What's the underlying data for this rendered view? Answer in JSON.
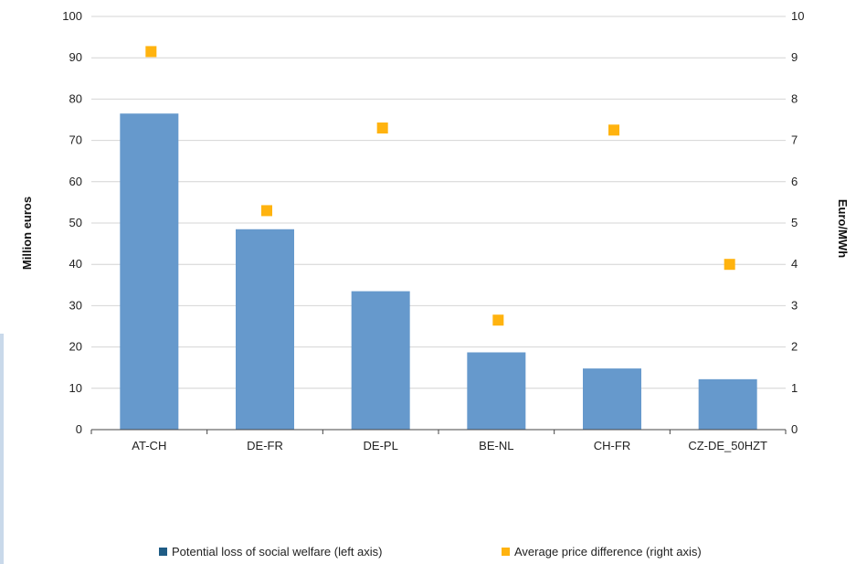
{
  "chart_data": {
    "type": "bar",
    "categories": [
      "AT-CH",
      "DE-FR",
      "DE-PL",
      "BE-NL",
      "CH-FR",
      "CZ-DE_50HZT"
    ],
    "series": [
      {
        "name": "Potential loss of social welfare (left axis)",
        "type": "bar",
        "axis": "left",
        "color": "#6699cc",
        "values": [
          76.5,
          48.5,
          33.5,
          18.7,
          14.8,
          12.2
        ]
      },
      {
        "name": "Average price difference (right axis)",
        "type": "scatter",
        "axis": "right",
        "color": "#ffb30f",
        "values": [
          9.15,
          5.3,
          7.3,
          2.65,
          7.25,
          4.0
        ]
      }
    ],
    "ylabel": "Million euros",
    "y2label": "Euro/MWh",
    "ylim": [
      0,
      100
    ],
    "y2lim": [
      0,
      10
    ],
    "yticks": [
      "0",
      "10",
      "20",
      "30",
      "40",
      "50",
      "60",
      "70",
      "80",
      "90",
      "100"
    ],
    "y2ticks": [
      "0",
      "1",
      "2",
      "3",
      "4",
      "5",
      "6",
      "7",
      "8",
      "9",
      "10"
    ],
    "grid": true,
    "legend_position": "bottom"
  },
  "legend_swatch_colors": {
    "bar": "#1f5c85",
    "marker": "#ffb30f"
  },
  "grid_color": "#d4d4d4",
  "axis_color": "#444444"
}
